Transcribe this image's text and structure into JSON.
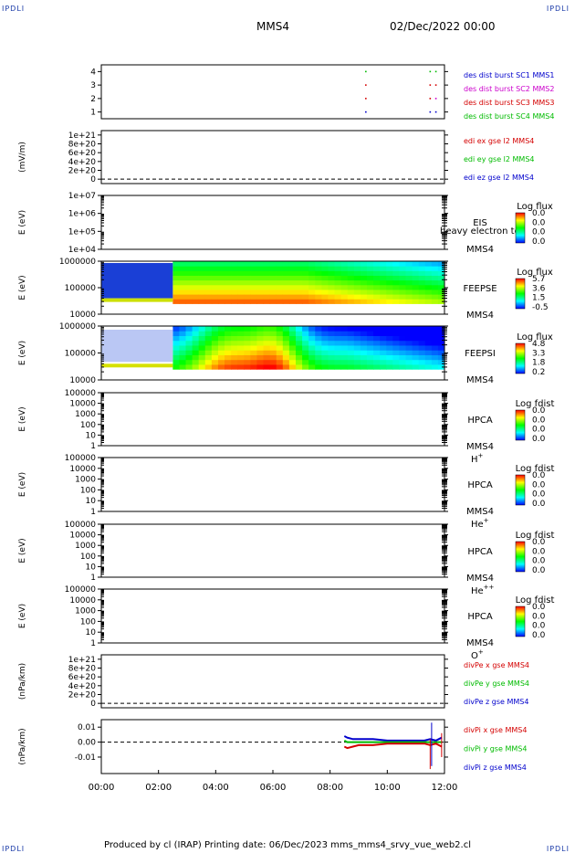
{
  "corner_label": "IPDLI",
  "header": {
    "spacecraft": "MMS4",
    "datetime": "02/Dec/2022 00:00"
  },
  "footer": {
    "text": "Produced by cl (IRAP)   Printing date: 06/Dec/2023   mms_mms4_srvy_vue_web2.cl"
  },
  "colors": {
    "red": "#d40000",
    "green": "#00bb00",
    "blue": "#0000cc",
    "magenta": "#cc00cc"
  },
  "chart_data": [
    {
      "type": "scatter",
      "ylim": [
        0.5,
        4.5
      ],
      "yscale": "linear",
      "yticks": [
        "1",
        "2",
        "3",
        "4"
      ],
      "ylabel": "",
      "legend": [
        {
          "text": "des dist burst SC1 MMS1",
          "color": "#0000cc"
        },
        {
          "text": "des dist burst SC2 MMS2",
          "color": "#cc00cc"
        },
        {
          "text": "des dist burst SC3 MMS3",
          "color": "#d40000"
        },
        {
          "text": "des dist burst SC4 MMS4",
          "color": "#00bb00"
        }
      ],
      "points": [
        {
          "x": 9.25,
          "y": 4,
          "color": "#00bb00"
        },
        {
          "x": 9.25,
          "y": 3,
          "color": "#d40000"
        },
        {
          "x": 9.25,
          "y": 2,
          "color": "#d40000"
        },
        {
          "x": 9.25,
          "y": 1,
          "color": "#0000cc"
        },
        {
          "x": 11.5,
          "y": 4,
          "color": "#00bb00"
        },
        {
          "x": 11.7,
          "y": 4,
          "color": "#00bb00"
        },
        {
          "x": 11.5,
          "y": 3,
          "color": "#d40000"
        },
        {
          "x": 11.7,
          "y": 3,
          "color": "#d40000"
        },
        {
          "x": 11.5,
          "y": 2,
          "color": "#d40000"
        },
        {
          "x": 11.7,
          "y": 2,
          "color": "#cc00cc"
        },
        {
          "x": 11.5,
          "y": 1,
          "color": "#0000cc"
        },
        {
          "x": 11.7,
          "y": 1,
          "color": "#0000cc"
        }
      ]
    },
    {
      "type": "line",
      "ylim": [
        -1e+20,
        1.1e+21
      ],
      "yscale": "linear",
      "yticks": [
        "0",
        "2e+20",
        "4e+20",
        "6e+20",
        "8e+20",
        "1e+21"
      ],
      "ylabel": "(mV/m)",
      "legend": [
        {
          "text": "edi ex gse l2 MMS4",
          "color": "#d40000"
        },
        {
          "text": "edi ey gse l2 MMS4",
          "color": "#00bb00"
        },
        {
          "text": "edi ez gse l2 MMS4",
          "color": "#0000cc"
        }
      ],
      "zero_line": true
    },
    {
      "type": "heatmap",
      "ylim": [
        10000.0,
        10000000.0
      ],
      "yscale": "log",
      "yticks": [
        "1e+04",
        "1e+05",
        "1e+06",
        "1e+07"
      ],
      "ylabel": "E (eV)",
      "labels": [
        "EIS",
        "MMS4"
      ],
      "overlay_text": "heavy electron tof",
      "colorbar": {
        "title": "Log flux",
        "ticks": [
          "0.0",
          "0.0",
          "0.0",
          "0.0"
        ]
      },
      "empty": true
    },
    {
      "type": "heatmap",
      "ylim": [
        10000.0,
        1000000.0
      ],
      "yscale": "log",
      "yticks": [
        "10000",
        "100000",
        "1000000"
      ],
      "ylabel": "E (eV)",
      "labels": [
        "FEEPSE",
        "MMS4"
      ],
      "colorbar": {
        "title": "Log flux",
        "ticks": [
          "5.7",
          "3.6",
          "1.5",
          "-0.5"
        ]
      },
      "empty": false,
      "variant": "electron"
    },
    {
      "type": "heatmap",
      "ylim": [
        10000.0,
        1000000.0
      ],
      "yscale": "log",
      "yticks": [
        "10000",
        "100000",
        "1000000"
      ],
      "ylabel": "E (eV)",
      "labels": [
        "FEEPSI",
        "MMS4"
      ],
      "colorbar": {
        "title": "Log flux",
        "ticks": [
          "4.8",
          "3.3",
          "1.8",
          "0.2"
        ]
      },
      "empty": false,
      "variant": "ion"
    },
    {
      "type": "heatmap",
      "ylim": [
        1,
        100000.0
      ],
      "yscale": "log",
      "yticks": [
        "1",
        "10",
        "100",
        "1000",
        "10000",
        "100000"
      ],
      "ylabel": "E (eV)",
      "labels": [
        "HPCA",
        "MMS4"
      ],
      "species": "H",
      "species_sup": "+",
      "colorbar": {
        "title": "Log fdist",
        "ticks": [
          "0.0",
          "0.0",
          "0.0",
          "0.0"
        ]
      },
      "empty": true
    },
    {
      "type": "heatmap",
      "ylim": [
        1,
        100000.0
      ],
      "yscale": "log",
      "yticks": [
        "1",
        "10",
        "100",
        "1000",
        "10000",
        "100000"
      ],
      "ylabel": "E (eV)",
      "labels": [
        "HPCA",
        "MMS4"
      ],
      "species": "He",
      "species_sup": "+",
      "colorbar": {
        "title": "Log fdist",
        "ticks": [
          "0.0",
          "0.0",
          "0.0",
          "0.0"
        ]
      },
      "empty": true
    },
    {
      "type": "heatmap",
      "ylim": [
        1,
        100000.0
      ],
      "yscale": "log",
      "yticks": [
        "1",
        "10",
        "100",
        "1000",
        "10000",
        "100000"
      ],
      "ylabel": "E (eV)",
      "labels": [
        "HPCA",
        "MMS4"
      ],
      "species": "He",
      "species_sup": "++",
      "colorbar": {
        "title": "Log fdist",
        "ticks": [
          "0.0",
          "0.0",
          "0.0",
          "0.0"
        ]
      },
      "empty": true
    },
    {
      "type": "heatmap",
      "ylim": [
        1,
        100000.0
      ],
      "yscale": "log",
      "yticks": [
        "1",
        "10",
        "100",
        "1000",
        "10000",
        "100000"
      ],
      "ylabel": "E (eV)",
      "labels": [
        "HPCA",
        "MMS4"
      ],
      "species": "O",
      "species_sup": "+",
      "colorbar": {
        "title": "Log fdist",
        "ticks": [
          "0.0",
          "0.0",
          "0.0",
          "0.0"
        ]
      },
      "empty": true
    },
    {
      "type": "line",
      "ylim": [
        -1e+20,
        1.1e+21
      ],
      "yscale": "linear",
      "yticks": [
        "0",
        "2e+20",
        "4e+20",
        "6e+20",
        "8e+20",
        "1e+21"
      ],
      "ylabel": "(nPa/km)",
      "legend": [
        {
          "text": "divPe x gse MMS4",
          "color": "#d40000"
        },
        {
          "text": "divPe y gse MMS4",
          "color": "#00bb00"
        },
        {
          "text": "divPe z gse MMS4",
          "color": "#0000cc"
        }
      ],
      "zero_line": true
    },
    {
      "type": "line",
      "ylim": [
        -0.021,
        0.015
      ],
      "yscale": "linear",
      "yticks": [
        "-0.01",
        "0.00",
        "0.01"
      ],
      "ytick_values": [
        -0.01,
        0,
        0.01
      ],
      "ylabel": "(nPa/km)",
      "legend": [
        {
          "text": "divPi x gse MMS4",
          "color": "#d40000"
        },
        {
          "text": "divPi y gse MMS4",
          "color": "#00bb00"
        },
        {
          "text": "divPi z gse MMS4",
          "color": "#0000cc"
        }
      ],
      "zero_line": true,
      "series": [
        {
          "name": "divPi z gse MMS4",
          "color": "#0000cc",
          "x": [
            8.5,
            8.6,
            8.8,
            9.0,
            9.5,
            10.0,
            10.5,
            11.0,
            11.3,
            11.5,
            11.7,
            11.9
          ],
          "y": [
            0.004,
            0.003,
            0.002,
            0.002,
            0.002,
            0.001,
            0.001,
            0.001,
            0.001,
            0.002,
            0.001,
            0.003
          ]
        },
        {
          "name": "divPi y gse MMS4",
          "color": "#00bb00",
          "x": [
            8.5,
            8.6,
            8.8,
            9.0,
            9.5,
            10.0,
            10.5,
            11.0,
            11.3,
            11.5,
            11.7,
            11.9
          ],
          "y": [
            0.001,
            0.0,
            0.0,
            0.0,
            0.0,
            0.0,
            0.0,
            0.0,
            0.0,
            0.0,
            0.0,
            0.0
          ]
        },
        {
          "name": "divPi x gse MMS4",
          "color": "#d40000",
          "x": [
            8.5,
            8.6,
            8.8,
            9.0,
            9.5,
            10.0,
            10.5,
            11.0,
            11.3,
            11.5,
            11.7,
            11.9
          ],
          "y": [
            -0.003,
            -0.004,
            -0.003,
            -0.002,
            -0.002,
            -0.001,
            -0.001,
            -0.001,
            -0.001,
            -0.002,
            -0.001,
            -0.003
          ]
        }
      ],
      "spikes": [
        {
          "x": 11.55,
          "y0": -0.016,
          "y1": 0.013,
          "color": "#0000cc"
        },
        {
          "x": 11.5,
          "y0": -0.018,
          "y1": 0.002,
          "color": "#d40000"
        },
        {
          "x": 11.9,
          "y0": -0.01,
          "y1": 0.006,
          "color": "#d40000"
        }
      ]
    }
  ],
  "xaxis": {
    "range_hours": [
      0,
      12
    ],
    "ticks": [
      "00:00",
      "02:00",
      "04:00",
      "06:00",
      "08:00",
      "10:00",
      "12:00"
    ]
  }
}
